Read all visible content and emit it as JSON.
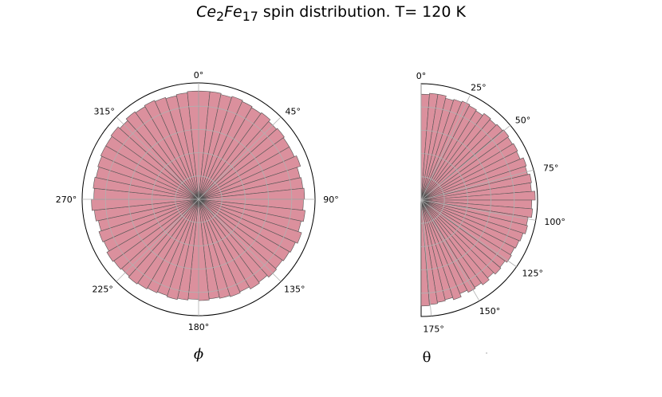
{
  "title": {
    "compound_base1": "Ce",
    "compound_sub1": "2",
    "compound_base2": "Fe",
    "compound_sub2": "17",
    "rest": " spin distribution. T= 120 K"
  },
  "colors": {
    "bar_fill": "#d98a98",
    "bar_fill_light": "#e37f93",
    "bar_edge": "#555555",
    "grid": "#b0b0b0",
    "frame": "#000000"
  },
  "chart_data": [
    {
      "type": "polar-histogram",
      "name": "phi",
      "xlabel": "ϕ",
      "angle_range_deg": [
        0,
        360
      ],
      "theta_zero_location": "N",
      "theta_direction": "clockwise",
      "tick_labels": [
        "0°",
        "45°",
        "90°",
        "135°",
        "180°",
        "225°",
        "270°",
        "315°"
      ],
      "tick_angles_deg": [
        0,
        45,
        90,
        135,
        180,
        225,
        270,
        315
      ],
      "bins": 60,
      "rlim": [
        0,
        1.0
      ],
      "rgrid": [
        0.2,
        0.4,
        0.6,
        0.8
      ],
      "values": [
        0.93,
        0.93,
        0.92,
        0.93,
        0.92,
        0.91,
        0.92,
        0.9,
        0.91,
        0.9,
        0.9,
        0.92,
        0.89,
        0.9,
        0.91,
        0.9,
        0.92,
        0.9,
        0.93,
        0.91,
        0.9,
        0.89,
        0.9,
        0.88,
        0.89,
        0.87,
        0.88,
        0.87,
        0.86,
        0.87,
        0.86,
        0.87,
        0.88,
        0.87,
        0.88,
        0.89,
        0.9,
        0.89,
        0.9,
        0.91,
        0.89,
        0.9,
        0.88,
        0.9,
        0.92,
        0.9,
        0.91,
        0.9,
        0.91,
        0.92,
        0.92,
        0.93,
        0.91,
        0.93,
        0.92,
        0.93,
        0.92,
        0.91,
        0.92,
        0.93
      ],
      "grid": true
    },
    {
      "type": "polar-histogram",
      "name": "theta",
      "xlabel": "θ",
      "angle_range_deg": [
        0,
        180
      ],
      "theta_zero_location": "N",
      "theta_direction": "clockwise",
      "tick_labels": [
        "0°",
        "25°",
        "50°",
        "75°",
        "100°",
        "125°",
        "150°",
        "175°"
      ],
      "tick_angles_deg": [
        0,
        25,
        50,
        75,
        100,
        125,
        150,
        175
      ],
      "bins": 40,
      "rlim": [
        0,
        1.0
      ],
      "rgrid": [
        0.2,
        0.4,
        0.6,
        0.8
      ],
      "values": [
        0.91,
        0.92,
        0.92,
        0.9,
        0.91,
        0.92,
        0.91,
        0.9,
        0.92,
        0.91,
        0.92,
        0.93,
        0.92,
        0.93,
        0.92,
        0.95,
        0.94,
        0.96,
        0.95,
        0.98,
        0.95,
        0.96,
        0.93,
        0.94,
        0.92,
        0.91,
        0.9,
        0.91,
        0.89,
        0.9,
        0.88,
        0.9,
        0.88,
        0.89,
        0.87,
        0.9,
        0.88,
        0.89,
        0.9,
        0.91
      ],
      "grid": true
    }
  ],
  "dot_mark": "·"
}
